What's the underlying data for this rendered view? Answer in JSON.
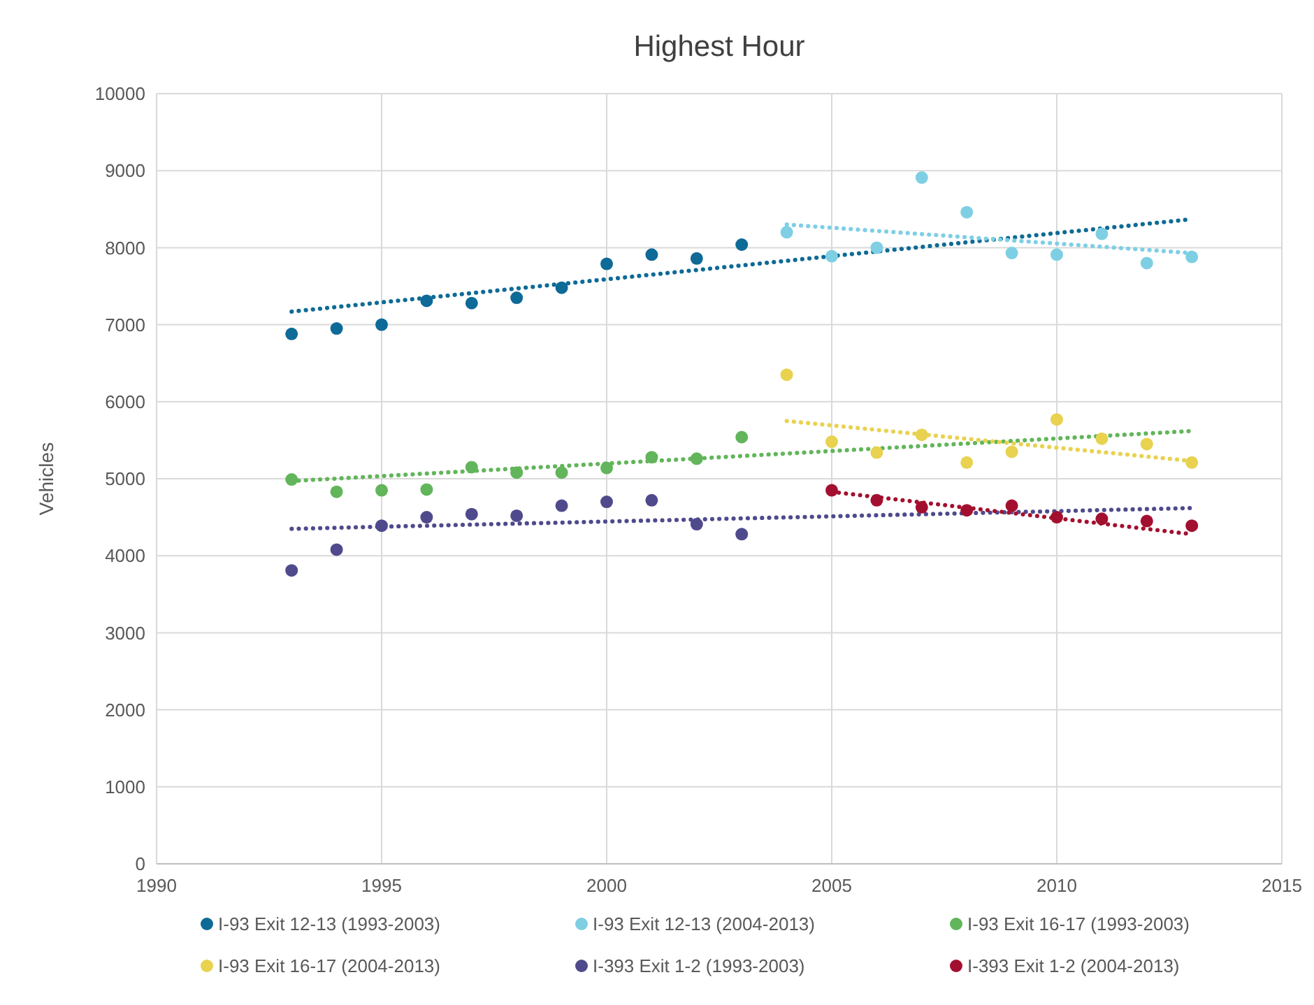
{
  "chart_data": {
    "type": "scatter",
    "title": "Highest Hour",
    "ylabel": "Vehicles",
    "x": [
      1993,
      1994,
      1995,
      1996,
      1997,
      1998,
      1999,
      2000,
      2001,
      2002,
      2003
    ],
    "xlim": [
      1990,
      2015
    ],
    "xticks": [
      1990,
      1995,
      2000,
      2005,
      2010,
      2015
    ],
    "ylim": [
      0,
      10000
    ],
    "yticks": [
      0,
      1000,
      2000,
      3000,
      4000,
      5000,
      6000,
      7000,
      8000,
      9000,
      10000
    ],
    "grid": true,
    "legend": "bottom",
    "marker": "circle",
    "series": [
      {
        "name": "I-93 Exit 12-13 (1993-2003)",
        "color": "#0e6a96",
        "values": [
          6880,
          6950,
          7000,
          7310,
          7280,
          7350,
          7480,
          7790,
          7910,
          7860,
          8040
        ]
      },
      {
        "name": "I-93 Exit 12-13 (2004-2013)",
        "color": "#7ecfe3",
        "x": [
          2004,
          2005,
          2006,
          2007,
          2008,
          2009,
          2010,
          2011,
          2012,
          2013
        ],
        "values": [
          8200,
          7890,
          8000,
          8910,
          8460,
          7930,
          7910,
          8180,
          7800,
          7880
        ]
      },
      {
        "name": "I-93 Exit 16-17 (1993-2003)",
        "color": "#62b55a",
        "values": [
          4990,
          4830,
          4850,
          4860,
          5150,
          5080,
          5080,
          5140,
          5280,
          5260,
          5540
        ]
      },
      {
        "name": "I-93 Exit 16-17 (2004-2013)",
        "color": "#e8d24f",
        "x": [
          2004,
          2005,
          2006,
          2007,
          2008,
          2009,
          2010,
          2011,
          2012,
          2013
        ],
        "values": [
          6350,
          5480,
          5340,
          5570,
          5210,
          5350,
          5770,
          5520,
          5450,
          5210
        ]
      },
      {
        "name": "I-393 Exit 1-2 (1993-2003)",
        "color": "#4f4a8c",
        "values": [
          3810,
          4080,
          4390,
          4500,
          4540,
          4520,
          4650,
          4700,
          4720,
          4410,
          4280
        ]
      },
      {
        "name": "I-393 Exit 1-2 (2004-2013)",
        "color": "#a3102f",
        "x": [
          2005,
          2006,
          2007,
          2008,
          2009,
          2010,
          2011,
          2012,
          2013
        ],
        "values": [
          4850,
          4720,
          4630,
          4590,
          4650,
          4500,
          4480,
          4450,
          4390
        ]
      },
      {
        "type": "line",
        "marker": "none",
        "line_style": "dotted",
        "color": "#0e6a96",
        "x": [
          1993,
          2013
        ],
        "values": [
          7170,
          8370
        ]
      },
      {
        "type": "line",
        "marker": "none",
        "line_style": "dotted",
        "color": "#7ecfe3",
        "x": [
          2004,
          2013
        ],
        "values": [
          8300,
          7930
        ]
      },
      {
        "type": "line",
        "marker": "none",
        "line_style": "dotted",
        "color": "#62b55a",
        "x": [
          1993,
          2013
        ],
        "values": [
          4970,
          5620
        ]
      },
      {
        "type": "line",
        "marker": "none",
        "line_style": "dotted",
        "color": "#e8d24f",
        "x": [
          2004,
          2013
        ],
        "values": [
          5750,
          5230
        ]
      },
      {
        "type": "line",
        "marker": "none",
        "line_style": "dotted",
        "color": "#4f4a8c",
        "x": [
          1993,
          2013
        ],
        "values": [
          4350,
          4620
        ]
      },
      {
        "type": "line",
        "marker": "none",
        "line_style": "dotted",
        "color": "#a3102f",
        "x": [
          2005,
          2013
        ],
        "values": [
          4830,
          4280
        ]
      }
    ]
  }
}
